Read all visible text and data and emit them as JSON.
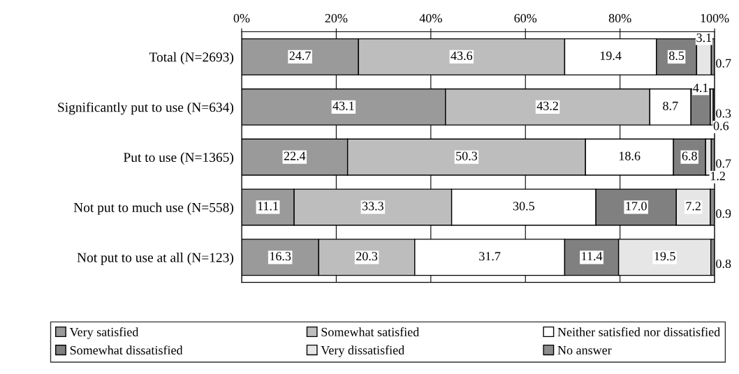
{
  "chart_data": {
    "type": "bar",
    "orientation": "horizontal",
    "stacked": true,
    "grid": "x",
    "legend": "bottom",
    "categories": [
      "Total (N=2693)",
      "Significantly put to use (N=634)",
      "Put to use (N=1365)",
      "Not put to much use (N=558)",
      "Not put to use at all (N=123)"
    ],
    "xlim": [
      0,
      100
    ],
    "xticks": [
      {
        "value": 0,
        "label": "0%"
      },
      {
        "value": 20,
        "label": "20%"
      },
      {
        "value": 40,
        "label": "40%"
      },
      {
        "value": 60,
        "label": "60%"
      },
      {
        "value": 80,
        "label": "80%"
      },
      {
        "value": 100,
        "label": "100%"
      }
    ],
    "series": [
      {
        "name": "Very satisfied",
        "color": "#9a9a9a",
        "values": [
          24.7,
          43.1,
          22.4,
          11.1,
          16.3
        ],
        "value_labels": [
          "24.7",
          "43.1",
          "22.4",
          "11.1",
          "16.3"
        ]
      },
      {
        "name": "Somewhat satisfied",
        "color": "#bdbdbd",
        "values": [
          43.6,
          43.2,
          50.3,
          33.3,
          20.3
        ],
        "value_labels": [
          "43.6",
          "43.2",
          "50.3",
          "33.3",
          "20.3"
        ]
      },
      {
        "name": "Neither satisfied nor dissatisfied",
        "color": "#ffffff",
        "values": [
          19.4,
          8.7,
          18.6,
          30.5,
          31.7
        ],
        "value_labels": [
          "19.4",
          "8.7",
          "18.6",
          "30.5",
          "31.7"
        ]
      },
      {
        "name": "Somewhat dissatisfied",
        "color": "#808080",
        "values": [
          8.5,
          4.1,
          6.8,
          17.0,
          11.4
        ],
        "value_labels": [
          "8.5",
          "4.1",
          "6.8",
          "17.0",
          "11.4"
        ]
      },
      {
        "name": "Very dissatisfied",
        "color": "#e6e6e6",
        "values": [
          3.1,
          0.6,
          1.2,
          7.2,
          19.5
        ],
        "value_labels": [
          "3.1",
          "0.6",
          "1.2",
          "7.2",
          "19.5"
        ]
      },
      {
        "name": "No answer",
        "color": "#8c8c8c",
        "values": [
          0.7,
          0.3,
          0.7,
          0.9,
          0.8
        ],
        "value_labels": [
          "0.7",
          "0.3",
          "0.7",
          "0.9",
          "0.8"
        ]
      }
    ]
  }
}
